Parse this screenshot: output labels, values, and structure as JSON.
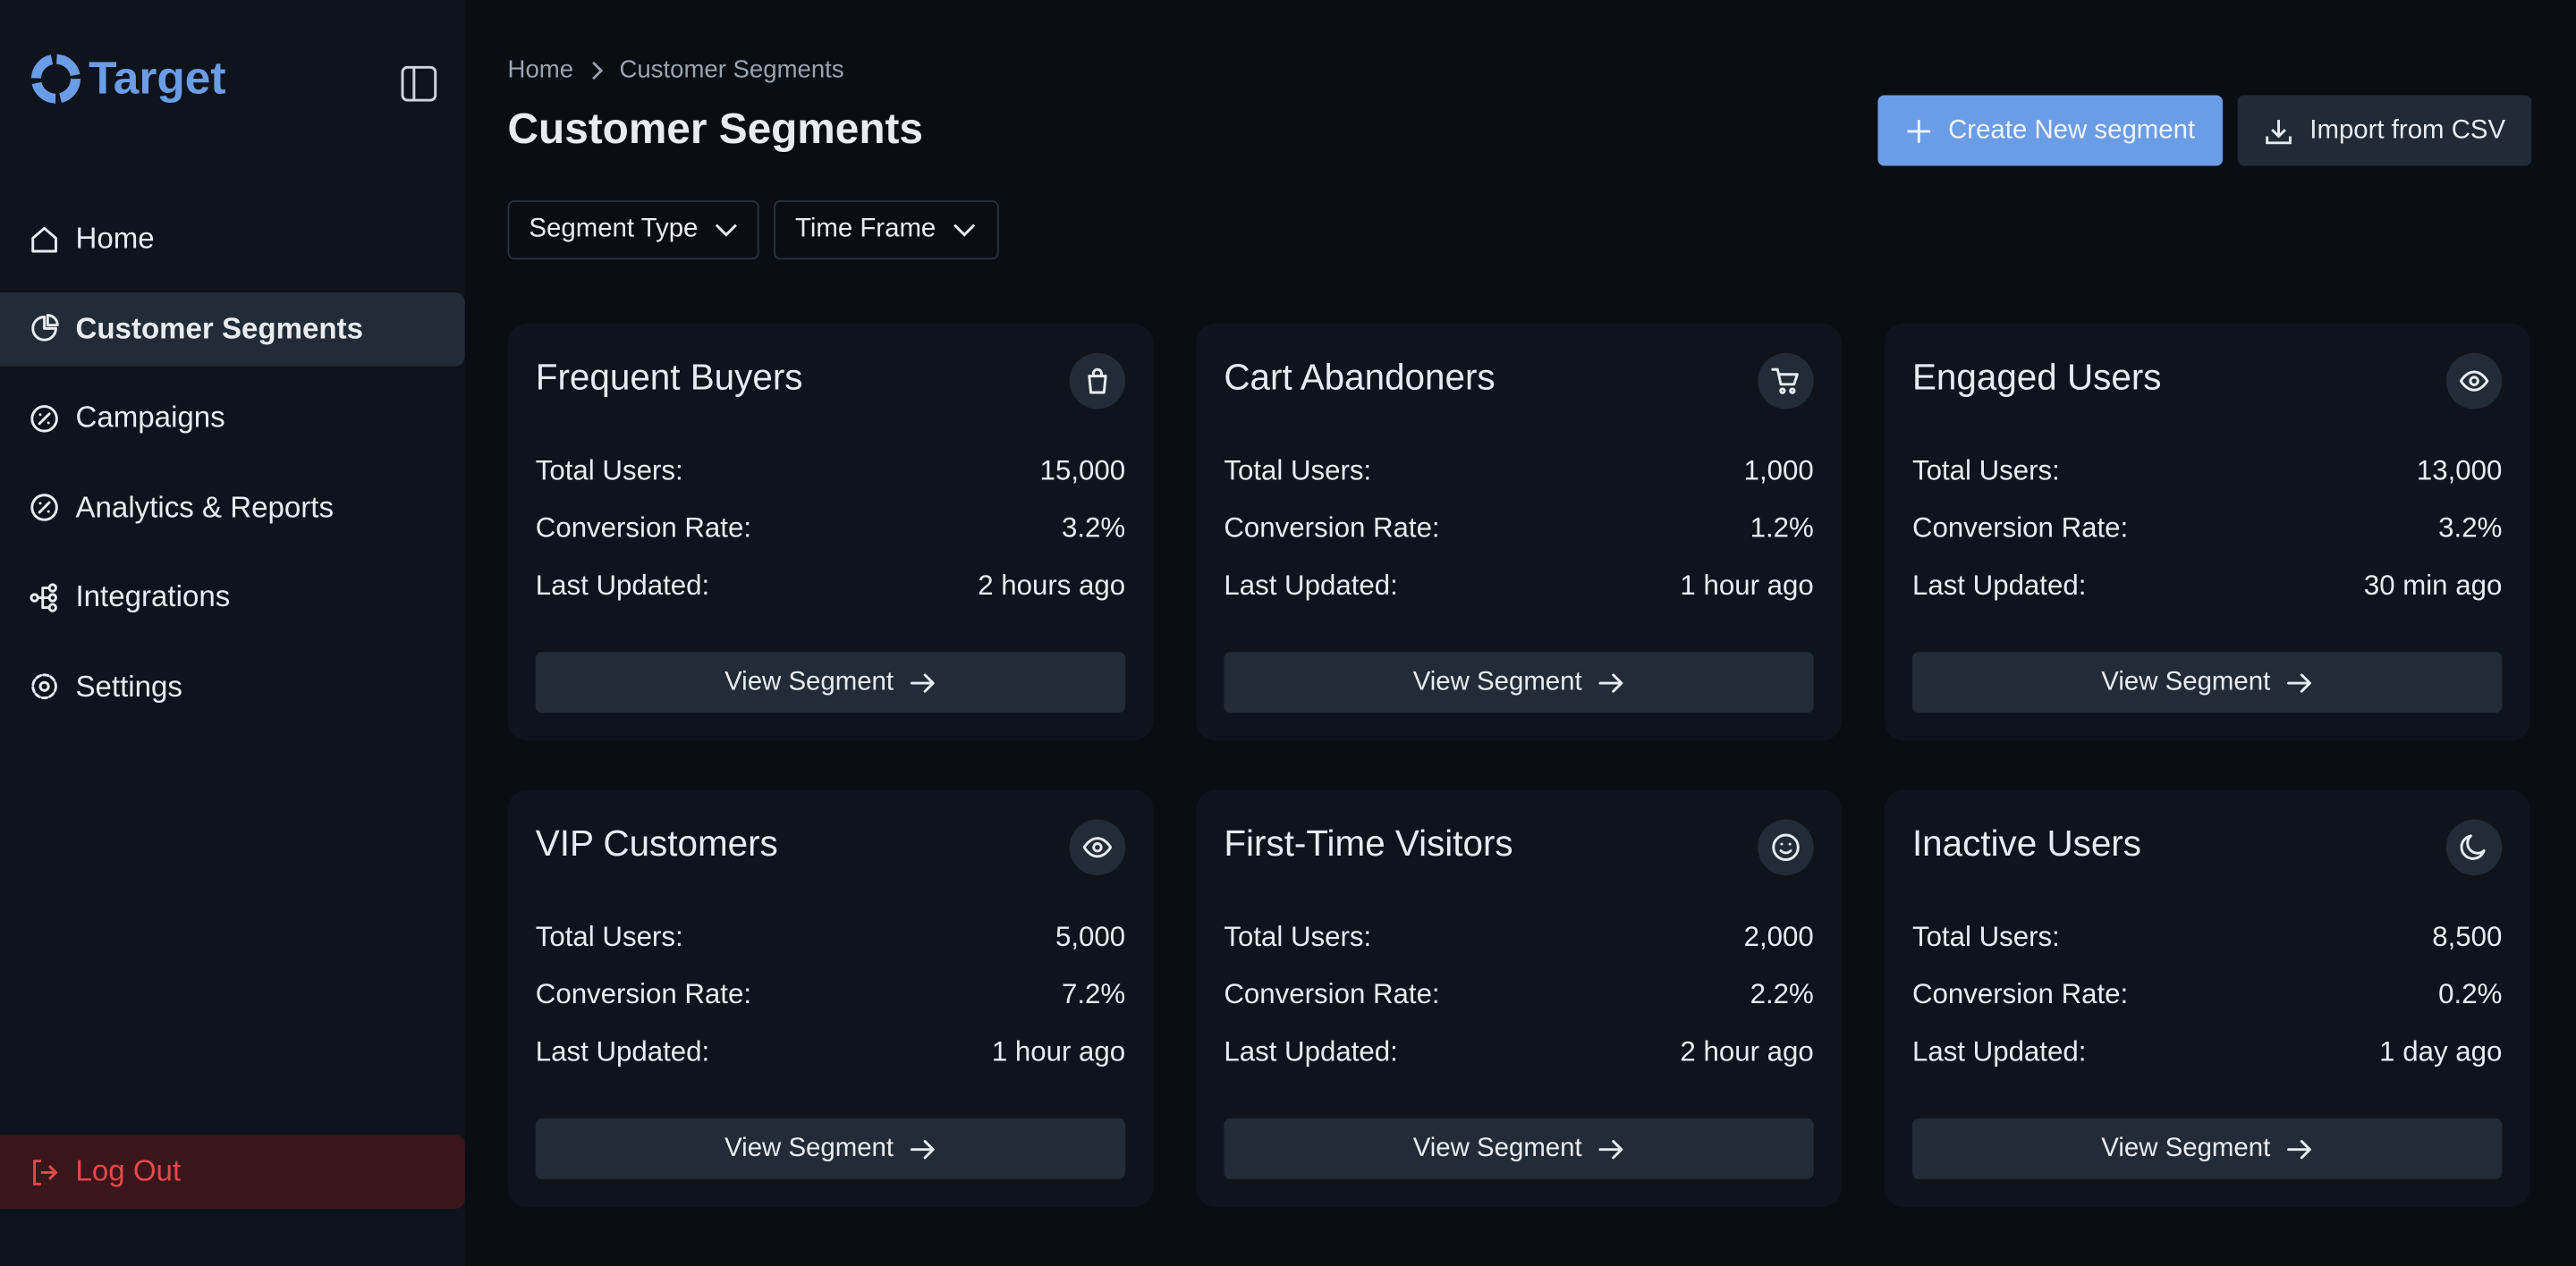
{
  "sidebar": {
    "brand": "Target",
    "nav": [
      "Home",
      "Customer Segments",
      "Campaigns",
      "Analytics & Reports",
      "Integrations",
      "Settings"
    ],
    "active": 1,
    "logout": "Log Out"
  },
  "header": {
    "breadcrumb": [
      "Home",
      "Customer Segments"
    ],
    "title": "Customer Segments",
    "primary_button": "Create New segment",
    "secondary_button": "Import from CSV",
    "filters": [
      "Segment Type",
      "Time Frame"
    ]
  },
  "cards": [
    {
      "title": "Frequent Buyers",
      "rows": [
        [
          "Total Users:",
          "15,000"
        ],
        [
          "Conversion Rate:",
          "3.2%"
        ],
        [
          "Last Updated:",
          "2 hours ago"
        ]
      ],
      "button": "View Segment"
    },
    {
      "title": "Cart Abandoners",
      "rows": [
        [
          "Total Users:",
          "1,000"
        ],
        [
          "Conversion Rate:",
          "1.2%"
        ],
        [
          "Last Updated:",
          "1 hour ago"
        ]
      ],
      "button": "View Segment"
    },
    {
      "title": "Engaged Users",
      "rows": [
        [
          "Total Users:",
          "13,000"
        ],
        [
          "Conversion Rate:",
          "3.2%"
        ],
        [
          "Last Updated:",
          "30 min ago"
        ]
      ],
      "button": "View Segment"
    },
    {
      "title": "VIP Customers",
      "rows": [
        [
          "Total Users:",
          "5,000"
        ],
        [
          "Conversion Rate:",
          "7.2%"
        ],
        [
          "Last Updated:",
          "1 hour ago"
        ]
      ],
      "button": "View Segment"
    },
    {
      "title": "First-Time Visitors",
      "rows": [
        [
          "Total Users:",
          "2,000"
        ],
        [
          "Conversion Rate:",
          "2.2%"
        ],
        [
          "Last Updated:",
          "2 hour ago"
        ]
      ],
      "button": "View Segment"
    },
    {
      "title": "Inactive Users",
      "rows": [
        [
          "Total Users:",
          "8,500"
        ],
        [
          "Conversion Rate:",
          "0.2%"
        ],
        [
          "Last Updated:",
          "1 day ago"
        ]
      ],
      "button": "View Segment"
    }
  ]
}
